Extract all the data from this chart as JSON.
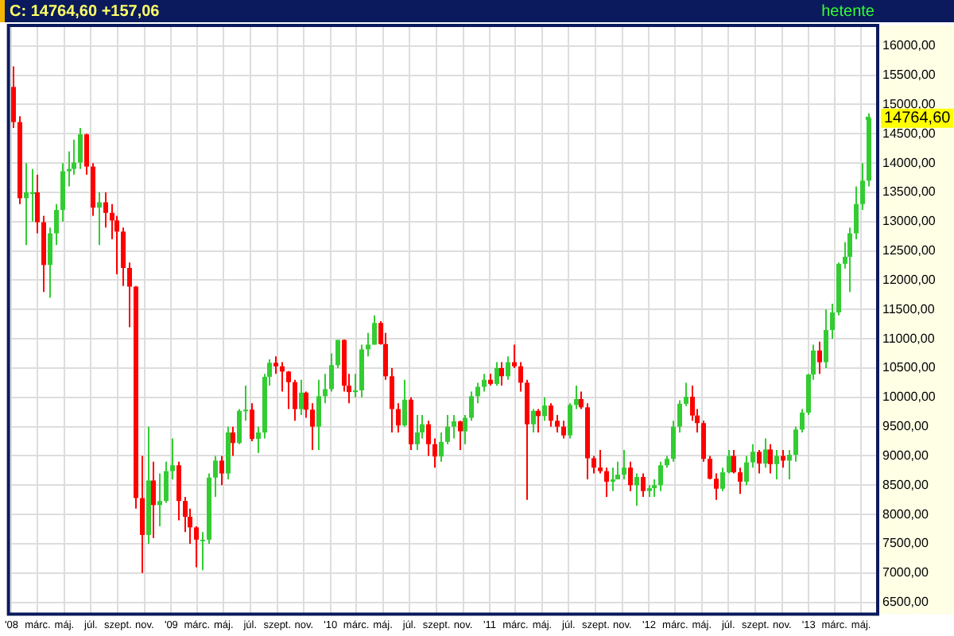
{
  "chart_data": {
    "type": "candlestick",
    "title": "C: 14764,60 +157,06",
    "annotations": [
      "hetente",
      {
        "text": "14764,60",
        "x": "2013-05-17",
        "y": 14764.6
      }
    ],
    "x": [
      "2008-01-04",
      "2008-01-18",
      "2008-02-01",
      "2008-02-15",
      "2008-02-29",
      "2008-03-14",
      "2008-03-28",
      "2008-04-11",
      "2008-04-25",
      "2008-05-09",
      "2008-05-23",
      "2008-06-06",
      "2008-06-20",
      "2008-07-04",
      "2008-07-18",
      "2008-08-01",
      "2008-08-15",
      "2008-08-29",
      "2008-09-12",
      "2008-09-26",
      "2008-10-10",
      "2008-10-24",
      "2008-11-07",
      "2008-11-21",
      "2008-12-05",
      "2008-12-19",
      "2009-01-02",
      "2009-01-16",
      "2009-01-30",
      "2009-02-13",
      "2009-02-27",
      "2009-03-13",
      "2009-03-27",
      "2009-04-10",
      "2009-04-24",
      "2009-05-08",
      "2009-05-22",
      "2009-06-05",
      "2009-06-19",
      "2009-07-03",
      "2009-07-17",
      "2009-07-31",
      "2009-08-14",
      "2009-08-28",
      "2009-09-11",
      "2009-09-25",
      "2009-10-09",
      "2009-10-23",
      "2009-11-06",
      "2009-11-20",
      "2009-12-04",
      "2009-12-18",
      "2010-01-01",
      "2010-01-15",
      "2010-01-29",
      "2010-02-12",
      "2010-02-26",
      "2010-03-12",
      "2010-03-26",
      "2010-04-09",
      "2010-04-23",
      "2010-05-07",
      "2010-05-21",
      "2010-06-04",
      "2010-06-18",
      "2010-07-02",
      "2010-07-16",
      "2010-07-30",
      "2010-08-13",
      "2010-08-27",
      "2010-09-10",
      "2010-09-24",
      "2010-10-08",
      "2010-10-22",
      "2010-11-05",
      "2010-11-19",
      "2010-12-03",
      "2010-12-17",
      "2010-12-31",
      "2011-01-14",
      "2011-01-28",
      "2011-02-11",
      "2011-02-25",
      "2011-03-11",
      "2011-03-25",
      "2011-04-08",
      "2011-04-22",
      "2011-05-06",
      "2011-05-20",
      "2011-06-03",
      "2011-06-17",
      "2011-07-01",
      "2011-07-15",
      "2011-07-29",
      "2011-08-12",
      "2011-08-26",
      "2011-09-09",
      "2011-09-23",
      "2011-10-07",
      "2011-10-21",
      "2011-11-04",
      "2011-11-18",
      "2011-12-02",
      "2011-12-16",
      "2011-12-30",
      "2012-01-13",
      "2012-01-27",
      "2012-02-10",
      "2012-02-24",
      "2012-03-09",
      "2012-03-23",
      "2012-04-06",
      "2012-04-20",
      "2012-05-04",
      "2012-05-18",
      "2012-06-01",
      "2012-06-15",
      "2012-06-29",
      "2012-07-13",
      "2012-07-27",
      "2012-08-10",
      "2012-08-24",
      "2012-09-07",
      "2012-09-21",
      "2012-10-05",
      "2012-10-19",
      "2012-11-02",
      "2012-11-16",
      "2012-11-30",
      "2012-12-14",
      "2012-12-28",
      "2013-01-11",
      "2013-01-25",
      "2013-02-08",
      "2013-02-22",
      "2013-03-08",
      "2013-03-22",
      "2013-04-05",
      "2013-04-19",
      "2013-05-03",
      "2013-05-17"
    ],
    "ohlc": [
      [
        15300,
        15650,
        14600,
        14700
      ],
      [
        14700,
        14800,
        13300,
        13400
      ],
      [
        13400,
        14000,
        12600,
        13500
      ],
      [
        13500,
        13900,
        13000,
        13500
      ],
      [
        13500,
        13800,
        12800,
        12990
      ],
      [
        12990,
        13100,
        11800,
        12260
      ],
      [
        12260,
        12900,
        11700,
        12800
      ],
      [
        12800,
        13300,
        12600,
        13200
      ],
      [
        13200,
        14000,
        13000,
        13860
      ],
      [
        13860,
        14200,
        13600,
        13900
      ],
      [
        13900,
        14400,
        13800,
        14010
      ],
      [
        14010,
        14600,
        13900,
        14490
      ],
      [
        14490,
        14500,
        13800,
        13940
      ],
      [
        13940,
        14000,
        13100,
        13240
      ],
      [
        13240,
        13500,
        12600,
        13330
      ],
      [
        13330,
        13500,
        12900,
        13150
      ],
      [
        13150,
        13300,
        12700,
        13020
      ],
      [
        13020,
        13100,
        12100,
        12830
      ],
      [
        12830,
        12900,
        11900,
        12210
      ],
      [
        12210,
        12300,
        11200,
        11890
      ],
      [
        11890,
        11900,
        8100,
        8280
      ],
      [
        8280,
        9000,
        7000,
        7650
      ],
      [
        7650,
        9500,
        7500,
        8580
      ],
      [
        8580,
        8900,
        7600,
        8160
      ],
      [
        8160,
        8700,
        7800,
        8230
      ],
      [
        8230,
        8900,
        8200,
        8740
      ],
      [
        8740,
        9300,
        8600,
        8840
      ],
      [
        8840,
        8900,
        7900,
        8230
      ],
      [
        8230,
        8300,
        7700,
        7960
      ],
      [
        7960,
        8100,
        7500,
        7780
      ],
      [
        7780,
        7800,
        7100,
        7570
      ],
      [
        7570,
        7700,
        7050,
        7570
      ],
      [
        7570,
        8700,
        7500,
        8630
      ],
      [
        8630,
        9000,
        8300,
        8920
      ],
      [
        8920,
        9000,
        8500,
        8700
      ],
      [
        8700,
        9500,
        8600,
        9400
      ],
      [
        9400,
        9500,
        9000,
        9220
      ],
      [
        9220,
        9800,
        9200,
        9770
      ],
      [
        9770,
        10200,
        9600,
        9790
      ],
      [
        9790,
        9900,
        9250,
        9290
      ],
      [
        9290,
        9500,
        9050,
        9400
      ],
      [
        9400,
        10400,
        9300,
        10350
      ],
      [
        10350,
        10650,
        10200,
        10590
      ],
      [
        10590,
        10700,
        10400,
        10530
      ],
      [
        10530,
        10600,
        10100,
        10440
      ],
      [
        10440,
        10450,
        9800,
        10260
      ],
      [
        10260,
        10300,
        9600,
        9800
      ],
      [
        9800,
        10300,
        9700,
        10080
      ],
      [
        10080,
        10100,
        9650,
        9790
      ],
      [
        9790,
        9900,
        9100,
        9500
      ],
      [
        9500,
        10300,
        9100,
        10020
      ],
      [
        10020,
        10400,
        9900,
        10140
      ],
      [
        10140,
        10750,
        10100,
        10550
      ],
      [
        10550,
        10980,
        10500,
        10980
      ],
      [
        10980,
        10990,
        10100,
        10200
      ],
      [
        10200,
        10400,
        9900,
        10090
      ],
      [
        10090,
        10400,
        10000,
        10120
      ],
      [
        10120,
        10900,
        10000,
        10820
      ],
      [
        10820,
        11100,
        10700,
        10900
      ],
      [
        10900,
        11400,
        10900,
        11270
      ],
      [
        11270,
        11300,
        10900,
        10910
      ],
      [
        10910,
        11100,
        10300,
        10360
      ],
      [
        10360,
        10500,
        9400,
        9800
      ],
      [
        9800,
        9900,
        9400,
        9520
      ],
      [
        9520,
        10300,
        9500,
        9960
      ],
      [
        9960,
        10000,
        9100,
        9200
      ],
      [
        9200,
        9700,
        9100,
        9400
      ],
      [
        9400,
        9700,
        9300,
        9540
      ],
      [
        9540,
        9600,
        9000,
        9200
      ],
      [
        9200,
        9300,
        8800,
        8990
      ],
      [
        8990,
        9400,
        8900,
        9240
      ],
      [
        9240,
        9700,
        9200,
        9500
      ],
      [
        9500,
        9700,
        9300,
        9590
      ],
      [
        9590,
        9600,
        9100,
        9420
      ],
      [
        9420,
        9700,
        9200,
        9650
      ],
      [
        9650,
        10100,
        9600,
        10020
      ],
      [
        10020,
        10250,
        9900,
        10180
      ],
      [
        10180,
        10400,
        10100,
        10300
      ],
      [
        10300,
        10400,
        10200,
        10230
      ],
      [
        10230,
        10600,
        10200,
        10500
      ],
      [
        10500,
        10600,
        10200,
        10360
      ],
      [
        10360,
        10700,
        10300,
        10600
      ],
      [
        10600,
        10900,
        10500,
        10530
      ],
      [
        10530,
        10600,
        10100,
        10250
      ],
      [
        10250,
        10300,
        8250,
        9540
      ],
      [
        9540,
        9800,
        9400,
        9770
      ],
      [
        9770,
        9800,
        9400,
        9680
      ],
      [
        9680,
        10000,
        9600,
        9860
      ],
      [
        9860,
        9900,
        9500,
        9600
      ],
      [
        9600,
        9700,
        9400,
        9500
      ],
      [
        9500,
        9600,
        9300,
        9350
      ],
      [
        9350,
        9900,
        9300,
        9870
      ],
      [
        9870,
        10200,
        9800,
        9970
      ],
      [
        9970,
        10100,
        9800,
        9830
      ],
      [
        9830,
        9900,
        8600,
        8960
      ],
      [
        8960,
        9000,
        8700,
        8800
      ],
      [
        8800,
        9100,
        8700,
        8740
      ],
      [
        8740,
        8800,
        8300,
        8560
      ],
      [
        8560,
        8800,
        8400,
        8600
      ],
      [
        8600,
        8900,
        8600,
        8680
      ],
      [
        8680,
        9100,
        8600,
        8800
      ],
      [
        8800,
        8900,
        8400,
        8500
      ],
      [
        8500,
        8700,
        8150,
        8640
      ],
      [
        8640,
        8700,
        8300,
        8400
      ],
      [
        8400,
        8500,
        8300,
        8450
      ],
      [
        8450,
        8600,
        8300,
        8500
      ],
      [
        8500,
        8900,
        8400,
        8840
      ],
      [
        8840,
        9000,
        8800,
        8950
      ],
      [
        8950,
        9600,
        8900,
        9500
      ],
      [
        9500,
        9950,
        9400,
        9890
      ],
      [
        9890,
        10250,
        9850,
        10010
      ],
      [
        10010,
        10200,
        9600,
        9690
      ],
      [
        9690,
        9800,
        9400,
        9560
      ],
      [
        9560,
        9600,
        8900,
        8950
      ],
      [
        8950,
        9000,
        8600,
        8610
      ],
      [
        8610,
        8700,
        8250,
        8440
      ],
      [
        8440,
        8800,
        8400,
        8720
      ],
      [
        8720,
        9100,
        8700,
        9000
      ],
      [
        9000,
        9100,
        8700,
        8720
      ],
      [
        8720,
        8800,
        8350,
        8560
      ],
      [
        8560,
        9000,
        8500,
        8890
      ],
      [
        8890,
        9200,
        8800,
        9070
      ],
      [
        9070,
        9100,
        8700,
        8870
      ],
      [
        8870,
        9300,
        8800,
        9110
      ],
      [
        9110,
        9200,
        8700,
        8860
      ],
      [
        8860,
        9100,
        8600,
        9000
      ],
      [
        9000,
        9100,
        8800,
        8920
      ],
      [
        8920,
        9100,
        8600,
        9020
      ],
      [
        9020,
        9500,
        8900,
        9450
      ],
      [
        9450,
        9800,
        9400,
        9740
      ],
      [
        9740,
        10400,
        9700,
        10390
      ],
      [
        10390,
        10900,
        10300,
        10800
      ],
      [
        10800,
        10950,
        10400,
        10600
      ],
      [
        10600,
        11500,
        10500,
        11150
      ],
      [
        11150,
        11600,
        11000,
        11450
      ],
      [
        11450,
        12300,
        11400,
        12280
      ],
      [
        12280,
        12650,
        12200,
        12400
      ],
      [
        12400,
        12900,
        11800,
        12800
      ],
      [
        12800,
        13600,
        12700,
        13300
      ],
      [
        13300,
        14000,
        13200,
        13700
      ],
      [
        13700,
        14850,
        13600,
        14764.6
      ]
    ],
    "colors": [
      "#ff0000",
      "#ff0000",
      "#33cc33",
      "#33cc33",
      "#ff0000",
      "#ff0000",
      "#33cc33",
      "#33cc33",
      "#33cc33",
      "#33cc33",
      "#33cc33",
      "#33cc33",
      "#ff0000",
      "#ff0000",
      "#33cc33",
      "#ff0000",
      "#ff0000",
      "#ff0000",
      "#ff0000",
      "#ff0000",
      "#ff0000",
      "#ff0000",
      "#33cc33",
      "#ff0000",
      "#33cc33",
      "#33cc33",
      "#33cc33",
      "#ff0000",
      "#ff0000",
      "#ff0000",
      "#ff0000",
      "#33cc33",
      "#33cc33",
      "#33cc33",
      "#ff0000",
      "#33cc33",
      "#ff0000",
      "#33cc33",
      "#33cc33",
      "#ff0000",
      "#33cc33",
      "#33cc33",
      "#33cc33",
      "#ff0000",
      "#ff0000",
      "#ff0000",
      "#ff0000",
      "#33cc33",
      "#ff0000",
      "#ff0000",
      "#33cc33",
      "#33cc33",
      "#33cc33",
      "#33cc33",
      "#ff0000",
      "#ff0000",
      "#33cc33",
      "#33cc33",
      "#33cc33",
      "#33cc33",
      "#ff0000",
      "#ff0000",
      "#ff0000",
      "#ff0000",
      "#33cc33",
      "#ff0000",
      "#33cc33",
      "#33cc33",
      "#ff0000",
      "#ff0000",
      "#33cc33",
      "#33cc33",
      "#33cc33",
      "#ff0000",
      "#33cc33",
      "#33cc33",
      "#33cc33",
      "#33cc33",
      "#ff0000",
      "#33cc33",
      "#ff0000",
      "#33cc33",
      "#ff0000",
      "#ff0000",
      "#ff0000",
      "#33cc33",
      "#ff0000",
      "#33cc33",
      "#ff0000",
      "#ff0000",
      "#ff0000",
      "#33cc33",
      "#33cc33",
      "#ff0000",
      "#ff0000",
      "#ff0000",
      "#ff0000",
      "#ff0000",
      "#33cc33",
      "#33cc33",
      "#33cc33",
      "#ff0000",
      "#33cc33",
      "#ff0000",
      "#33cc33",
      "#33cc33",
      "#33cc33",
      "#33cc33",
      "#33cc33",
      "#33cc33",
      "#33cc33",
      "#ff0000",
      "#ff0000",
      "#ff0000",
      "#ff0000",
      "#ff0000",
      "#33cc33",
      "#33cc33",
      "#ff0000",
      "#ff0000",
      "#33cc33",
      "#33cc33",
      "#ff0000",
      "#33cc33",
      "#ff0000",
      "#33cc33",
      "#ff0000",
      "#33cc33",
      "#33cc33",
      "#33cc33",
      "#33cc33",
      "#33cc33",
      "#ff0000",
      "#33cc33",
      "#33cc33",
      "#33cc33",
      "#33cc33",
      "#33cc33",
      "#33cc33",
      "#33cc33",
      "#33cc33"
    ],
    "xlim": [
      "2007-12-25",
      "2013-06-08"
    ],
    "xticks": [
      {
        "value": "2008-01-01",
        "label": "'08"
      },
      {
        "value": "2008-03-01",
        "label": "márc."
      },
      {
        "value": "2008-05-01",
        "label": "máj."
      },
      {
        "value": "2008-07-01",
        "label": "júl."
      },
      {
        "value": "2008-09-01",
        "label": "szept."
      },
      {
        "value": "2008-11-01",
        "label": "nov."
      },
      {
        "value": "2009-01-01",
        "label": "'09"
      },
      {
        "value": "2009-03-01",
        "label": "márc."
      },
      {
        "value": "2009-05-01",
        "label": "máj."
      },
      {
        "value": "2009-07-01",
        "label": "júl."
      },
      {
        "value": "2009-09-01",
        "label": "szept."
      },
      {
        "value": "2009-11-01",
        "label": "nov."
      },
      {
        "value": "2010-01-01",
        "label": "'10"
      },
      {
        "value": "2010-03-01",
        "label": "márc."
      },
      {
        "value": "2010-05-01",
        "label": "máj."
      },
      {
        "value": "2010-07-01",
        "label": "júl."
      },
      {
        "value": "2010-09-01",
        "label": "szept."
      },
      {
        "value": "2010-11-01",
        "label": "nov."
      },
      {
        "value": "2011-01-01",
        "label": "'11"
      },
      {
        "value": "2011-03-01",
        "label": "márc."
      },
      {
        "value": "2011-05-01",
        "label": "máj."
      },
      {
        "value": "2011-07-01",
        "label": "júl."
      },
      {
        "value": "2011-09-01",
        "label": "szept."
      },
      {
        "value": "2011-11-01",
        "label": "nov."
      },
      {
        "value": "2012-01-01",
        "label": "'12"
      },
      {
        "value": "2012-03-01",
        "label": "márc."
      },
      {
        "value": "2012-05-01",
        "label": "máj."
      },
      {
        "value": "2012-07-01",
        "label": "júl."
      },
      {
        "value": "2012-09-01",
        "label": "szept."
      },
      {
        "value": "2012-11-01",
        "label": "nov."
      },
      {
        "value": "2013-01-01",
        "label": "'13"
      },
      {
        "value": "2013-03-01",
        "label": "márc."
      },
      {
        "value": "2013-05-01",
        "label": "máj."
      }
    ],
    "ylim": [
      6300,
      16350
    ],
    "yticks": [
      {
        "value": 6500,
        "label": "6500,00"
      },
      {
        "value": 7000,
        "label": "7000,00"
      },
      {
        "value": 7500,
        "label": "7500,00"
      },
      {
        "value": 8000,
        "label": "8000,00"
      },
      {
        "value": 8500,
        "label": "8500,00"
      },
      {
        "value": 9000,
        "label": "9000,00"
      },
      {
        "value": 9500,
        "label": "9500,00"
      },
      {
        "value": 10000,
        "label": "10000,00"
      },
      {
        "value": 10500,
        "label": "10500,00"
      },
      {
        "value": 11000,
        "label": "11000,00"
      },
      {
        "value": 11500,
        "label": "11500,00"
      },
      {
        "value": 12000,
        "label": "12000,00"
      },
      {
        "value": 12500,
        "label": "12500,00"
      },
      {
        "value": 13000,
        "label": "13000,00"
      },
      {
        "value": 13500,
        "label": "13500,00"
      },
      {
        "value": 14000,
        "label": "14000,00"
      },
      {
        "value": 14500,
        "label": "14500,00"
      },
      {
        "value": 15000,
        "label": "15000,00"
      },
      {
        "value": 15500,
        "label": "15500,00"
      },
      {
        "value": 16000,
        "label": "16000,00"
      }
    ],
    "grid": true,
    "legend": false
  }
}
